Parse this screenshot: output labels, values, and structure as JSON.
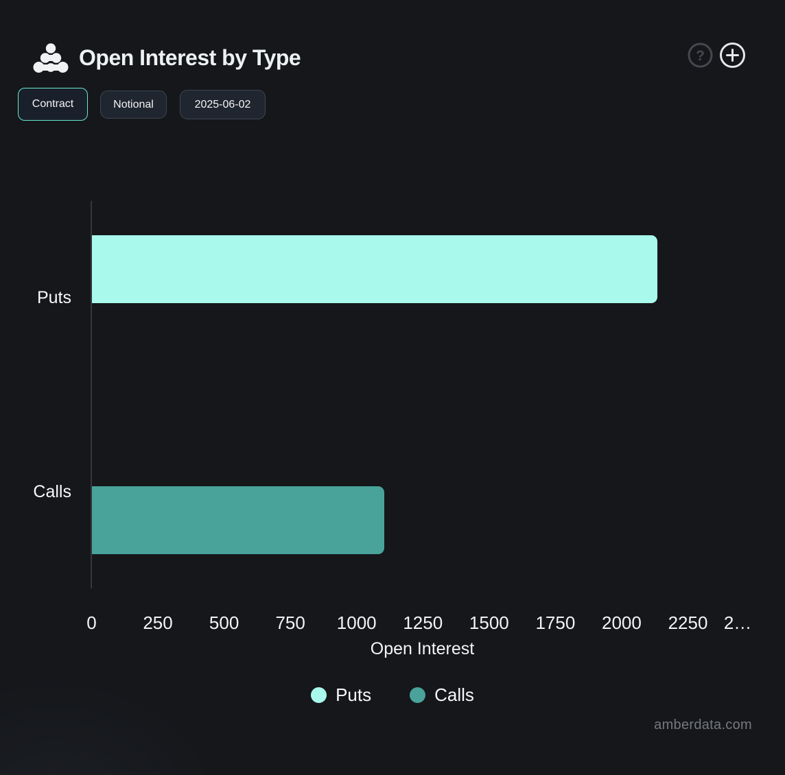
{
  "header": {
    "title": "Open Interest by Type"
  },
  "toolbar": {
    "contract": {
      "label": "Contract",
      "active": true
    },
    "notional": {
      "label": "Notional",
      "active": false
    },
    "date": {
      "label": "2025-06-02",
      "active": false
    }
  },
  "chart_data": {
    "type": "bar",
    "orientation": "horizontal",
    "title": "Open Interest by Type",
    "categories": [
      "Puts",
      "Calls"
    ],
    "series": [
      {
        "name": "Puts",
        "color": "#a9faec",
        "values": [
          2133,
          null
        ]
      },
      {
        "name": "Calls",
        "color": "#49a39a",
        "values": [
          null,
          1104
        ]
      }
    ],
    "xlabel": "Open Interest",
    "xlim": [
      0,
      2500
    ],
    "xticks": [
      {
        "label": "0",
        "value": 0
      },
      {
        "label": "250",
        "value": 250
      },
      {
        "label": "500",
        "value": 500
      },
      {
        "label": "750",
        "value": 750
      },
      {
        "label": "1000",
        "value": 1000
      },
      {
        "label": "1250",
        "value": 1250
      },
      {
        "label": "1500",
        "value": 1500
      },
      {
        "label": "1750",
        "value": 1750
      },
      {
        "label": "2000",
        "value": 2000
      },
      {
        "label": "2250",
        "value": 2250
      },
      {
        "label": "2…",
        "value": 2500
      }
    ],
    "grid": false,
    "legend": {
      "position": "bottom",
      "entries": [
        {
          "label": "Puts",
          "color": "#a9faec"
        },
        {
          "label": "Calls",
          "color": "#49a39a"
        }
      ]
    }
  },
  "footer": {
    "watermark": "amberdata.com"
  }
}
